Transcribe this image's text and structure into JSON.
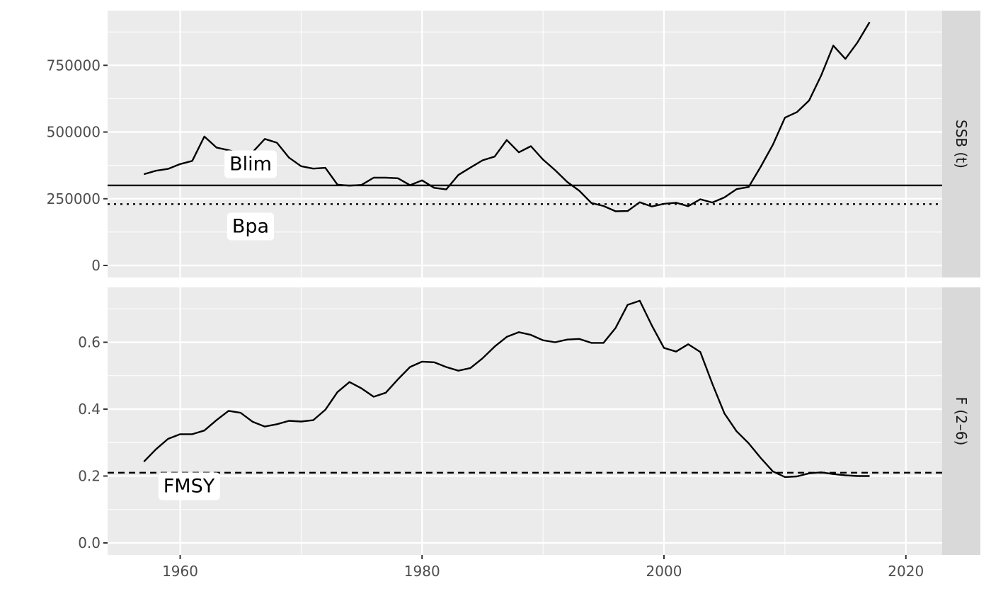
{
  "chart_data": [
    {
      "type": "line",
      "facet_label": "SSB (t)",
      "x_ticks": [
        1960,
        1980,
        2000,
        2020
      ],
      "y_ticks": [
        0,
        250000,
        500000,
        750000
      ],
      "y_tick_labels": [
        "0",
        "250000",
        "500000",
        "750000"
      ],
      "xlim": [
        1954,
        2023
      ],
      "ylim": [
        -45000,
        955000
      ],
      "grid": true,
      "series": [
        {
          "x": [
            1957,
            1958,
            1959,
            1960,
            1961,
            1962,
            1963,
            1964,
            1965,
            1966,
            1967,
            1968,
            1969,
            1970,
            1971,
            1972,
            1973,
            1974,
            1975,
            1976,
            1977,
            1978,
            1979,
            1980,
            1981,
            1982,
            1983,
            1984,
            1985,
            1986,
            1987,
            1988,
            1989,
            1990,
            1991,
            1992,
            1993,
            1994,
            1995,
            1996,
            1997,
            1998,
            1999,
            2000,
            2001,
            2002,
            2003,
            2004,
            2005,
            2006,
            2007,
            2008,
            2009,
            2010,
            2011,
            2012,
            2013,
            2014,
            2015,
            2016,
            2017
          ],
          "values": [
            342000,
            355000,
            362000,
            380000,
            392000,
            483000,
            442000,
            432000,
            420000,
            425000,
            474000,
            460000,
            404000,
            372000,
            363000,
            366000,
            303000,
            299000,
            302000,
            329000,
            329000,
            327000,
            301000,
            319000,
            291000,
            285000,
            339000,
            367000,
            394000,
            408000,
            470000,
            424000,
            447000,
            397000,
            357000,
            313000,
            280000,
            234000,
            223000,
            203000,
            204000,
            237000,
            221000,
            231000,
            235000,
            222000,
            248000,
            236000,
            255000,
            286000,
            294000,
            370000,
            452000,
            554000,
            575000,
            618000,
            712000,
            824000,
            774000,
            836000,
            912000
          ]
        }
      ],
      "reference_lines": [
        {
          "name": "Blim",
          "value": 300000,
          "style": "solid"
        },
        {
          "name": "Bpa",
          "value": 230000,
          "style": "dotted"
        }
      ]
    },
    {
      "type": "line",
      "facet_label": "F (2–6)",
      "x_ticks": [
        1960,
        1980,
        2000,
        2020
      ],
      "x_tick_labels": [
        "1960",
        "1980",
        "2000",
        "2020"
      ],
      "y_ticks": [
        0.0,
        0.2,
        0.4,
        0.6
      ],
      "y_tick_labels": [
        "0.0",
        "0.2",
        "0.4",
        "0.6"
      ],
      "xlim": [
        1954,
        2023
      ],
      "ylim": [
        -0.036,
        0.764
      ],
      "grid": true,
      "series": [
        {
          "x": [
            1957,
            1958,
            1959,
            1960,
            1961,
            1962,
            1963,
            1964,
            1965,
            1966,
            1967,
            1968,
            1969,
            1970,
            1971,
            1972,
            1973,
            1974,
            1975,
            1976,
            1977,
            1978,
            1979,
            1980,
            1981,
            1982,
            1983,
            1984,
            1985,
            1986,
            1987,
            1988,
            1989,
            1990,
            1991,
            1992,
            1993,
            1994,
            1995,
            1996,
            1997,
            1998,
            1999,
            2000,
            2001,
            2002,
            2003,
            2004,
            2005,
            2006,
            2007,
            2008,
            2009,
            2010,
            2011,
            2012,
            2013,
            2014,
            2015,
            2016,
            2017
          ],
          "values": [
            0.243,
            0.28,
            0.311,
            0.325,
            0.325,
            0.336,
            0.367,
            0.395,
            0.389,
            0.362,
            0.348,
            0.355,
            0.365,
            0.363,
            0.367,
            0.398,
            0.451,
            0.481,
            0.462,
            0.437,
            0.449,
            0.489,
            0.526,
            0.542,
            0.54,
            0.526,
            0.515,
            0.523,
            0.552,
            0.587,
            0.616,
            0.63,
            0.622,
            0.606,
            0.6,
            0.608,
            0.61,
            0.598,
            0.598,
            0.643,
            0.712,
            0.724,
            0.65,
            0.583,
            0.572,
            0.594,
            0.571,
            0.476,
            0.387,
            0.334,
            0.298,
            0.254,
            0.214,
            0.197,
            0.199,
            0.208,
            0.211,
            0.206,
            0.202,
            0.2,
            0.2
          ]
        }
      ],
      "reference_lines": [
        {
          "name": "FMSY",
          "value": 0.21,
          "style": "dashed"
        }
      ]
    }
  ]
}
